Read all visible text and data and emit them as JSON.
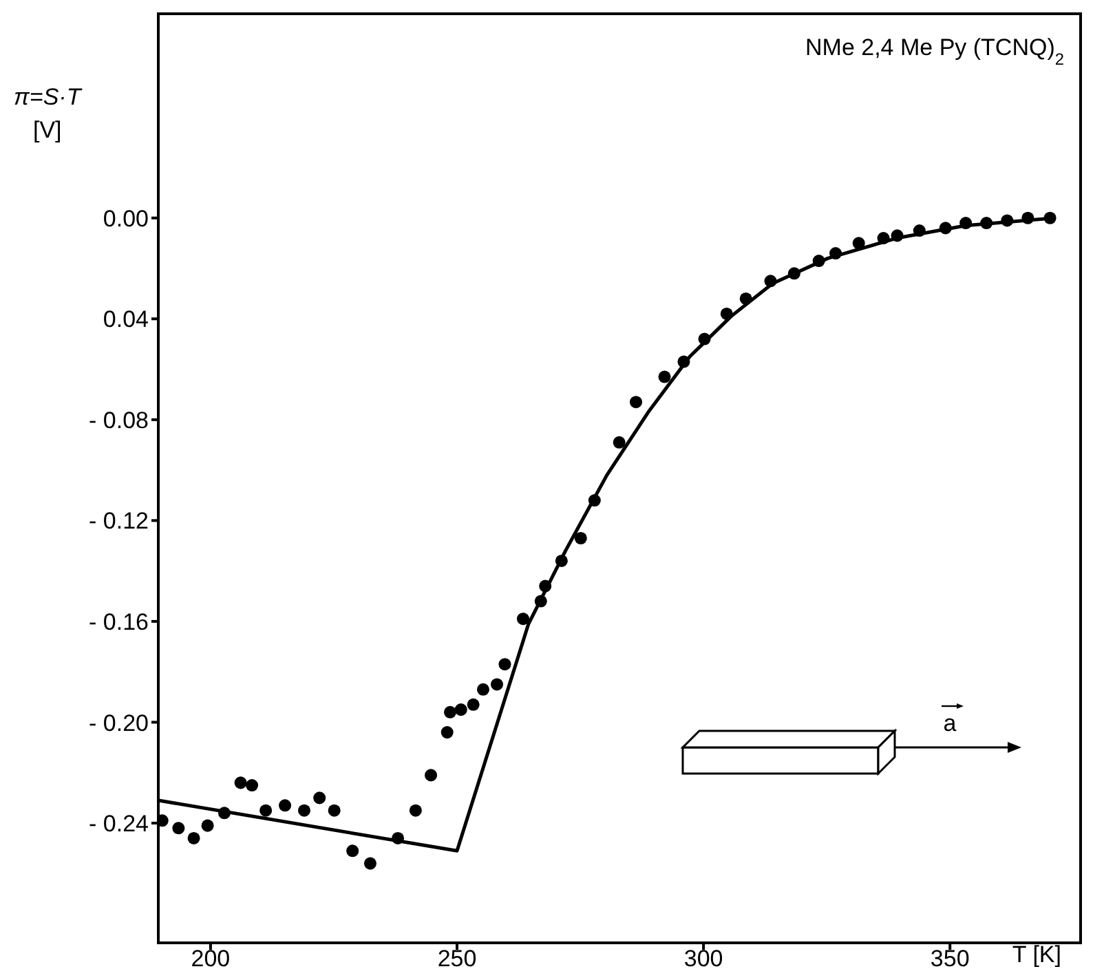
{
  "chart_data": {
    "type": "scatter",
    "ylabel": "π=S·T [V]",
    "xlabel": "T [K]",
    "annotations": [
      "NMe 2,4 Me Py (TCNQ)$_{2}$",
      "a"
    ],
    "xlim": [
      189.4,
      376.5
    ],
    "xticks": [
      200,
      250,
      300,
      350
    ],
    "ylim": [
      -0.2875,
      0.081
    ],
    "yticks": [
      {
        "value": 0,
        "label": "0.00"
      },
      {
        "value": -0.04,
        "label": "0.04"
      },
      {
        "value": -0.08,
        "label": "- 0.08"
      },
      {
        "value": -0.12,
        "label": "- 0.12"
      },
      {
        "value": -0.16,
        "label": "- 0.16"
      },
      {
        "value": -0.2,
        "label": "- 0.20"
      },
      {
        "value": -0.24,
        "label": "- 0.24"
      }
    ],
    "grid": false,
    "legend": false,
    "marker": "circle",
    "series": [
      {
        "color": "#000000",
        "x": [
          190.2,
          193.5,
          196.6,
          199.4,
          202.8,
          206.1,
          208.4,
          211.2,
          215.1,
          219.0,
          222.1,
          225.1,
          228.8,
          232.4,
          238.0,
          241.6,
          244.7,
          248.0,
          248.6,
          250.8,
          253.3,
          255.3,
          258.1,
          259.7,
          263.4,
          267.0,
          267.9,
          271.2,
          275.1,
          277.9,
          282.9,
          286.3,
          292.1,
          296.0,
          300.2,
          304.7,
          308.6,
          313.6,
          318.4,
          323.4,
          326.8,
          331.5,
          336.5,
          339.3,
          343.8,
          349.1,
          353.2,
          357.4,
          361.6,
          365.8,
          370.3
        ],
        "values": [
          -0.239,
          -0.242,
          -0.246,
          -0.241,
          -0.236,
          -0.224,
          -0.225,
          -0.235,
          -0.233,
          -0.235,
          -0.23,
          -0.235,
          -0.251,
          -0.256,
          -0.246,
          -0.235,
          -0.221,
          -0.204,
          -0.196,
          -0.195,
          -0.193,
          -0.187,
          -0.185,
          -0.177,
          -0.159,
          -0.152,
          -0.146,
          -0.136,
          -0.127,
          -0.112,
          -0.089,
          -0.073,
          -0.063,
          -0.057,
          -0.048,
          -0.038,
          -0.032,
          -0.025,
          -0.022,
          -0.017,
          -0.014,
          -0.01,
          -0.008,
          -0.007,
          -0.005,
          -0.004,
          -0.002,
          -0.002,
          -0.001,
          0.0,
          0.0
        ]
      },
      {
        "type": "line",
        "color": "#000000",
        "marker": "none",
        "line_style": "solid",
        "x": [
          189.4,
          250,
          264.5,
          272,
          280.4,
          288.8,
          297.2,
          305.6,
          314,
          325.2,
          339.2,
          353.2,
          371.3
        ],
        "values": [
          -0.231,
          -0.251,
          -0.161,
          -0.132,
          -0.102,
          -0.077,
          -0.055,
          -0.039,
          -0.026,
          -0.016,
          -0.008,
          -0.003,
          0.0
        ]
      }
    ]
  }
}
